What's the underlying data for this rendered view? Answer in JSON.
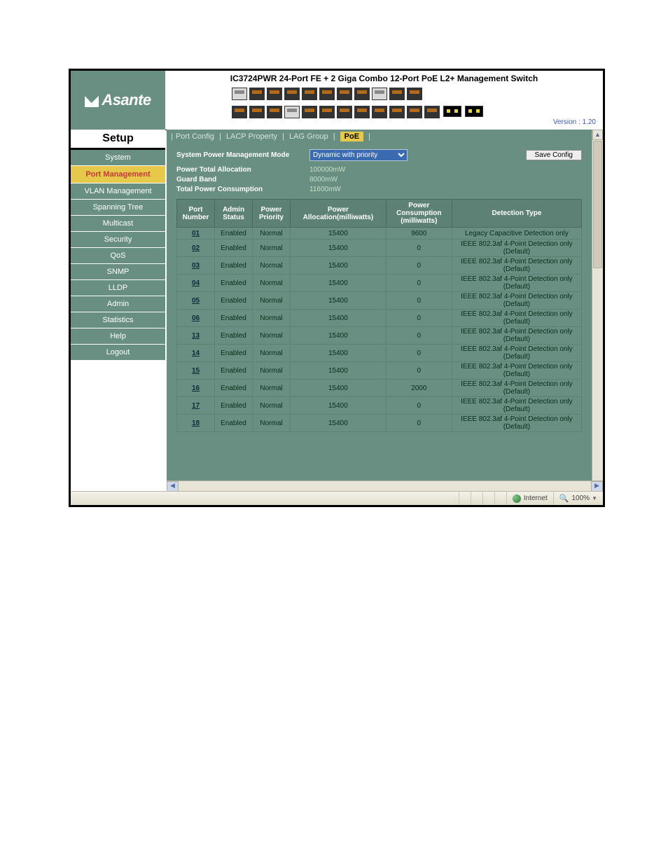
{
  "brand": "Asante",
  "title": "IC3724PWR 24-Port FE + 2 Giga Combo 12-Port PoE L2+ Management Switch",
  "version_label": "Version :  1.20",
  "setup_label": "Setup",
  "nav": [
    "System",
    "Port Management",
    "VLAN Management",
    "Spanning Tree",
    "Multicast",
    "Security",
    "QoS",
    "SNMP",
    "LLDP",
    "Admin",
    "Statistics",
    "Help",
    "Logout"
  ],
  "nav_active_index": 1,
  "tabs": [
    "Port Config",
    "LACP Property",
    "LAG Group",
    "PoE"
  ],
  "tab_active_index": 3,
  "mgmt_mode_label": "System Power Management Mode",
  "mgmt_mode_value": "Dynamic with priority",
  "save_label": "Save Config",
  "info": [
    {
      "k": "Power Total Allocation",
      "v": "100000mW"
    },
    {
      "k": "Guard Band",
      "v": "8000mW"
    },
    {
      "k": "Total Power Consumption",
      "v": "11600mW"
    }
  ],
  "table_headers": [
    "Port Number",
    "Admin Status",
    "Power Priority",
    "Power Allocation(milliwatts)",
    "Power Consumption (milliwatts)",
    "Detection Type"
  ],
  "rows": [
    {
      "port": "01",
      "admin": "Enabled",
      "prio": "Normal",
      "alloc": "15400",
      "cons": "9600",
      "det": "Legacy Capacitive Detection only"
    },
    {
      "port": "02",
      "admin": "Enabled",
      "prio": "Normal",
      "alloc": "15400",
      "cons": "0",
      "det": "IEEE 802.3af 4-Point Detection only (Default)"
    },
    {
      "port": "03",
      "admin": "Enabled",
      "prio": "Normal",
      "alloc": "15400",
      "cons": "0",
      "det": "IEEE 802.3af 4-Point Detection only (Default)"
    },
    {
      "port": "04",
      "admin": "Enabled",
      "prio": "Normal",
      "alloc": "15400",
      "cons": "0",
      "det": "IEEE 802.3af 4-Point Detection only (Default)"
    },
    {
      "port": "05",
      "admin": "Enabled",
      "prio": "Normal",
      "alloc": "15400",
      "cons": "0",
      "det": "IEEE 802.3af 4-Point Detection only (Default)"
    },
    {
      "port": "06",
      "admin": "Enabled",
      "prio": "Normal",
      "alloc": "15400",
      "cons": "0",
      "det": "IEEE 802.3af 4-Point Detection only (Default)"
    },
    {
      "port": "13",
      "admin": "Enabled",
      "prio": "Normal",
      "alloc": "15400",
      "cons": "0",
      "det": "IEEE 802.3af 4-Point Detection only (Default)"
    },
    {
      "port": "14",
      "admin": "Enabled",
      "prio": "Normal",
      "alloc": "15400",
      "cons": "0",
      "det": "IEEE 802.3af 4-Point Detection only (Default)"
    },
    {
      "port": "15",
      "admin": "Enabled",
      "prio": "Normal",
      "alloc": "15400",
      "cons": "0",
      "det": "IEEE 802.3af 4-Point Detection only (Default)"
    },
    {
      "port": "16",
      "admin": "Enabled",
      "prio": "Normal",
      "alloc": "15400",
      "cons": "2000",
      "det": "IEEE 802.3af 4-Point Detection only (Default)"
    },
    {
      "port": "17",
      "admin": "Enabled",
      "prio": "Normal",
      "alloc": "15400",
      "cons": "0",
      "det": "IEEE 802.3af 4-Point Detection only (Default)"
    },
    {
      "port": "18",
      "admin": "Enabled",
      "prio": "Normal",
      "alloc": "15400",
      "cons": "0",
      "det": "IEEE 802.3af 4-Point Detection only (Default)"
    }
  ],
  "status_internet": "Internet",
  "status_zoom": "100%",
  "colors": {
    "sage": "#688f82",
    "sage_dark": "#5d8275",
    "accent": "#e6c84a",
    "accent_text": "#c43a3a",
    "select_bg": "#3a6ab0"
  },
  "switch_ports": {
    "top_row": [
      "uplink",
      "dark",
      "dark",
      "dark",
      "dark",
      "dark",
      "dark",
      "dark",
      "uplink",
      "dark",
      "dark"
    ],
    "bottom_row": [
      "dark",
      "dark",
      "dark",
      "uplink",
      "dark",
      "dark",
      "dark",
      "dark",
      "dark",
      "dark",
      "dark",
      "dark"
    ]
  }
}
